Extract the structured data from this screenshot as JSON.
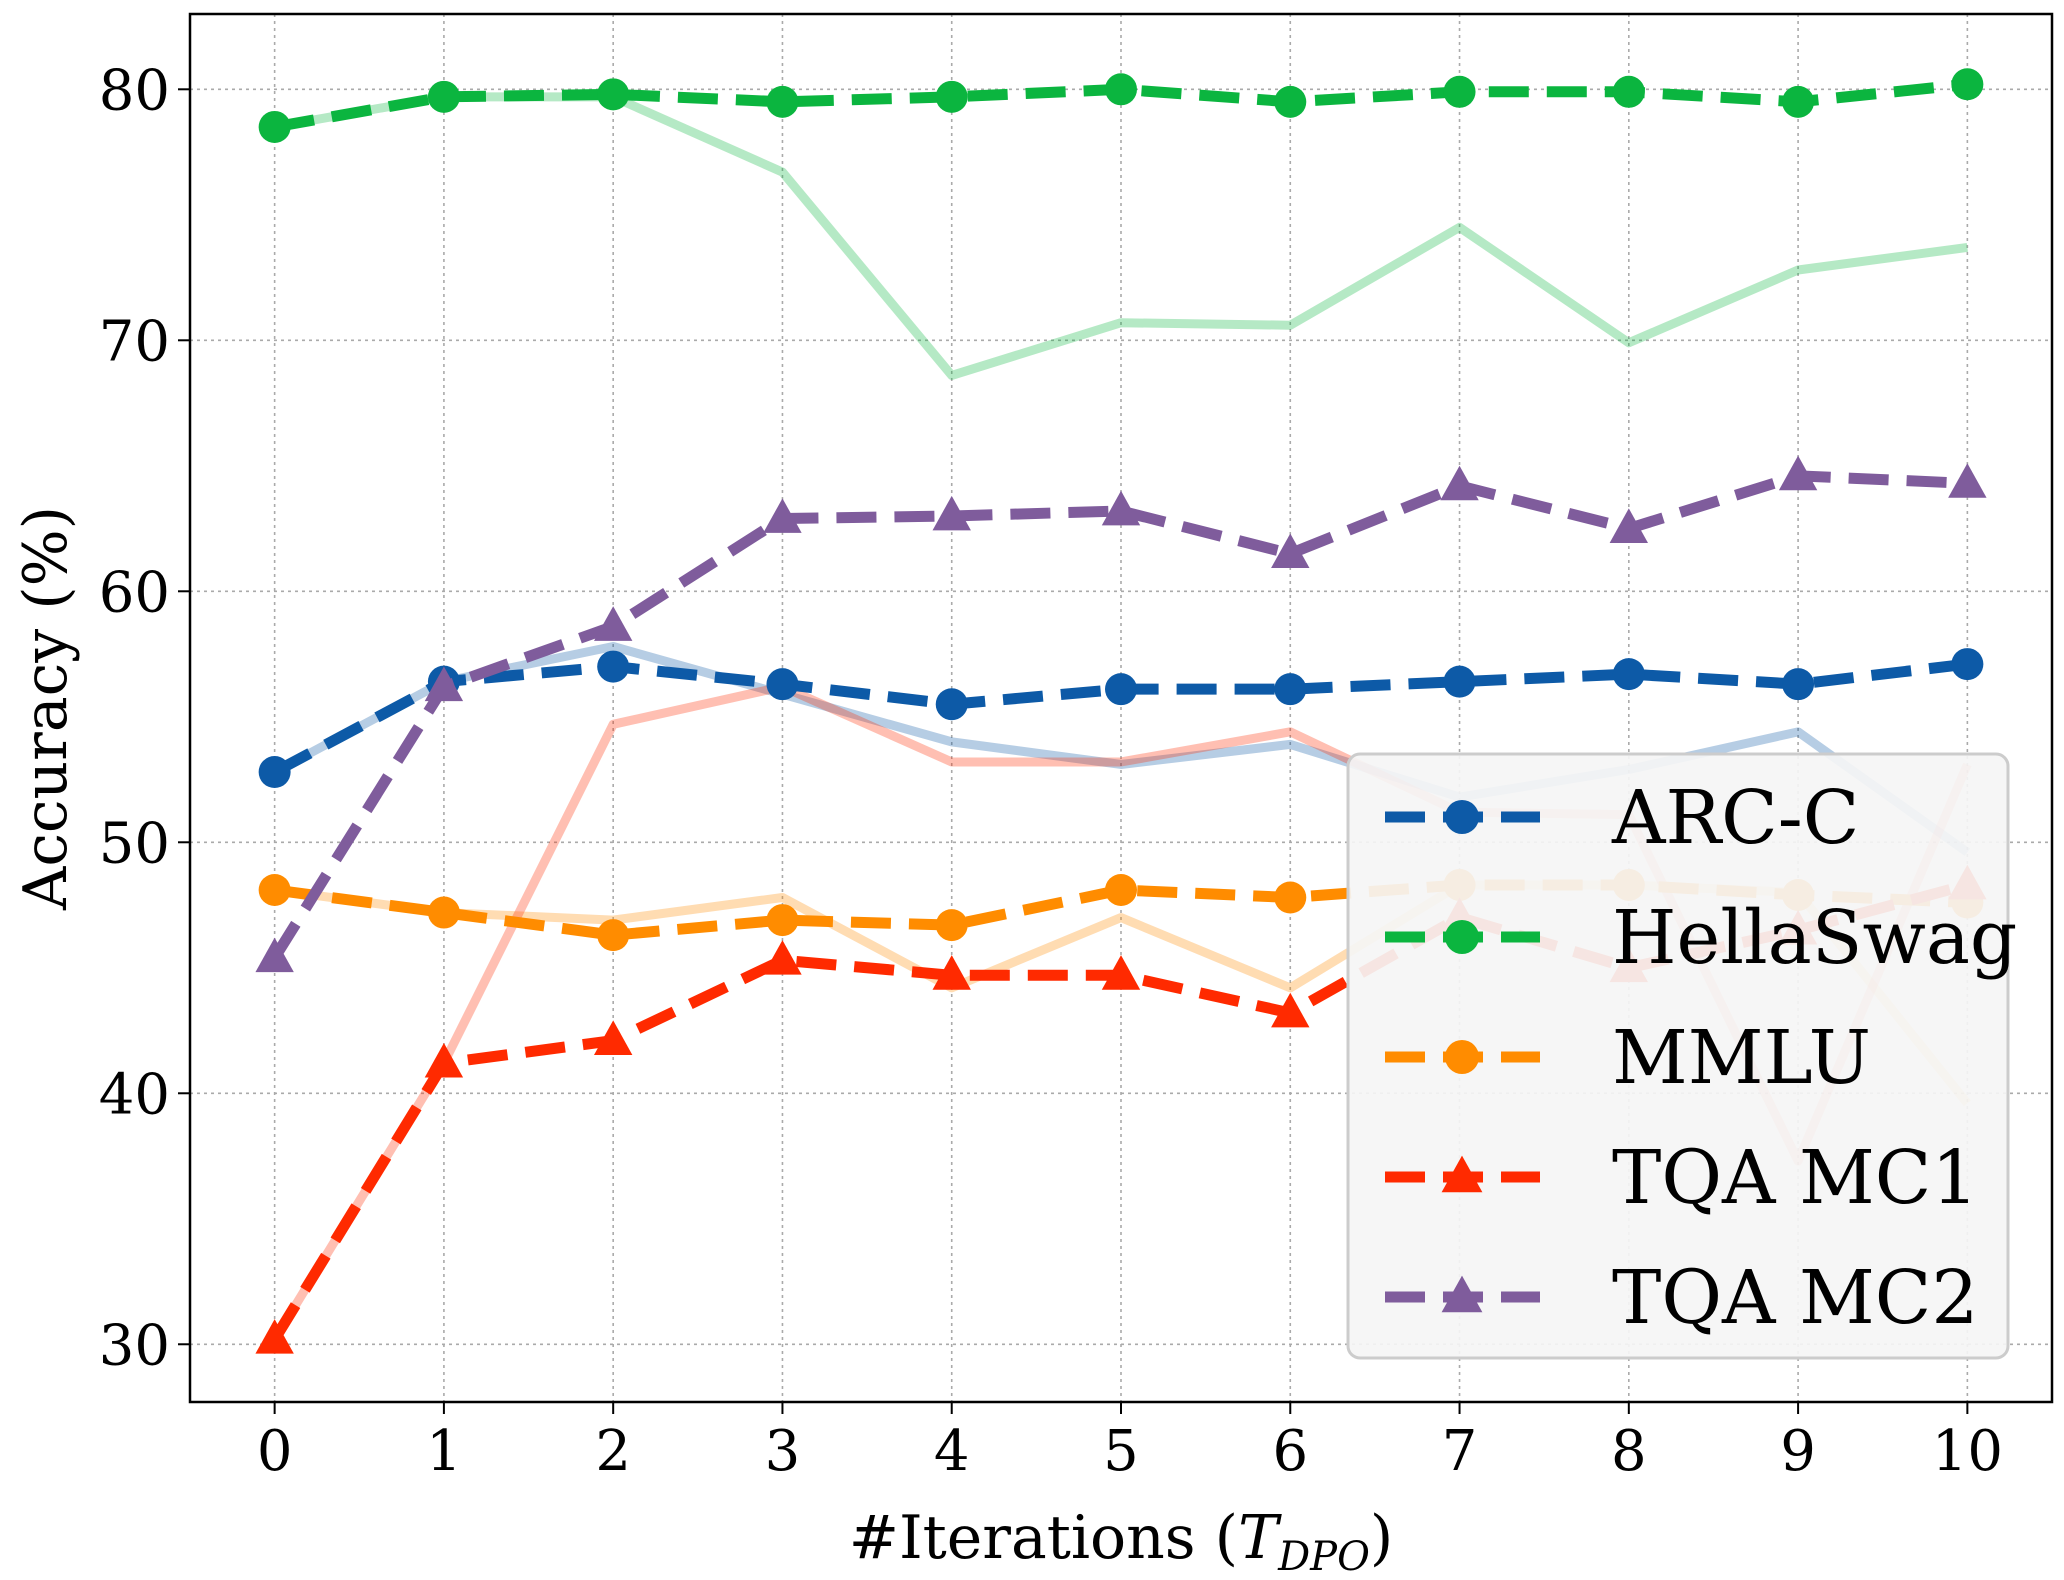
{
  "chart_data": {
    "type": "line",
    "xlabel": "#Iterations (",
    "xlabel_symbol": "T",
    "xlabel_subscript": "DPO",
    "xlabel_close": ")",
    "ylabel": "Accuracy (%)",
    "x": [
      0,
      1,
      2,
      3,
      4,
      5,
      6,
      7,
      8,
      9,
      10
    ],
    "xticks": [
      "0",
      "1",
      "2",
      "3",
      "4",
      "5",
      "6",
      "7",
      "8",
      "9",
      "10"
    ],
    "yticks": [
      "30",
      "40",
      "50",
      "60",
      "70",
      "80"
    ],
    "ytick_values": [
      30,
      40,
      50,
      60,
      70,
      80
    ],
    "xlim": [
      -0.5,
      10.5
    ],
    "ylim": [
      27.7,
      83
    ],
    "grid": true,
    "legend_position": "lower right",
    "series": [
      {
        "name": "ARC-C",
        "color": "#0d5aa7",
        "marker": "circle",
        "values": [
          52.8,
          56.4,
          57.0,
          56.3,
          55.5,
          56.1,
          56.1,
          56.4,
          56.7,
          56.3,
          57.1
        ],
        "background_values": [
          52.8,
          56.4,
          57.8,
          55.9,
          54.0,
          53.1,
          53.9,
          51.8,
          52.9,
          54.4,
          49.6
        ]
      },
      {
        "name": "HellaSwag",
        "color": "#0bb53f",
        "marker": "circle",
        "values": [
          78.5,
          79.7,
          79.8,
          79.5,
          79.7,
          80.0,
          79.5,
          79.9,
          79.9,
          79.5,
          80.2
        ],
        "background_values": [
          78.5,
          79.7,
          79.7,
          76.7,
          68.6,
          70.7,
          70.6,
          74.5,
          69.9,
          72.8,
          73.7
        ]
      },
      {
        "name": "MMLU",
        "color": "#ff8c00",
        "marker": "circle",
        "values": [
          48.1,
          47.2,
          46.3,
          46.9,
          46.7,
          48.1,
          47.8,
          48.3,
          48.3,
          47.9,
          47.6
        ],
        "background_values": [
          48.1,
          47.2,
          46.9,
          47.8,
          44.2,
          47.0,
          44.2,
          48.3,
          48.3,
          48.0,
          39.6
        ]
      },
      {
        "name": "TQA MC1",
        "color": "#ff2a00",
        "marker": "triangle",
        "values": [
          30.2,
          41.2,
          42.1,
          45.3,
          44.7,
          44.7,
          43.2,
          47.0,
          45.0,
          46.5,
          48.3
        ],
        "background_values": [
          30.2,
          41.2,
          54.7,
          56.2,
          53.2,
          53.2,
          54.4,
          51.2,
          51.1,
          37.3,
          53.1
        ]
      },
      {
        "name": "TQA MC2",
        "color": "#7f5c9c",
        "marker": "triangle",
        "values": [
          45.4,
          56.2,
          58.6,
          62.9,
          63.0,
          63.2,
          61.5,
          64.2,
          62.5,
          64.6,
          64.3
        ],
        "background_values": []
      }
    ]
  }
}
